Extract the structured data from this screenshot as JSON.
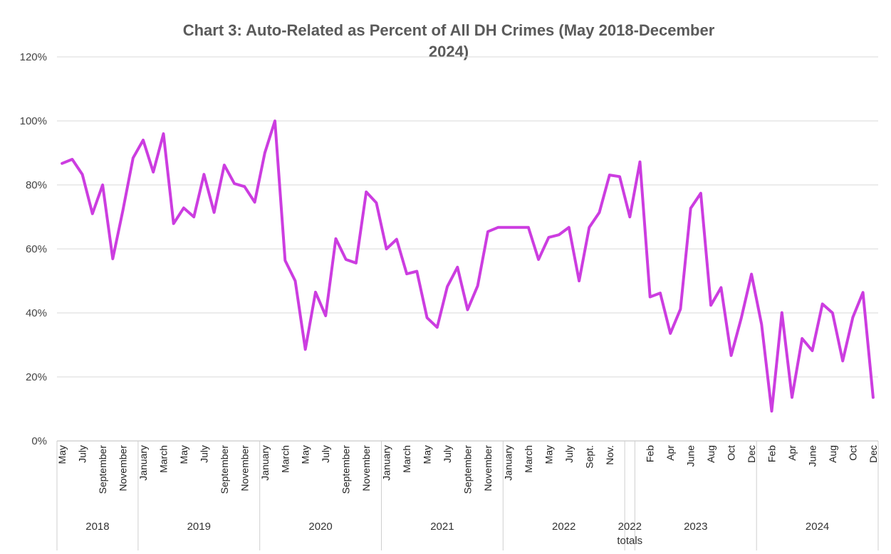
{
  "chart_data": {
    "type": "line",
    "title_lines": [
      "Chart 3: Auto-Related as Percent of All DH Crimes (May 2018-December",
      "2024)"
    ],
    "ylim": [
      0,
      120
    ],
    "y_ticks": [
      "0%",
      "20%",
      "40%",
      "60%",
      "80%",
      "100%",
      "120%"
    ],
    "grid": true,
    "legend": "none",
    "line_color": "#cc3de0",
    "points": [
      {
        "group": "2018",
        "month": "May",
        "value": 86.7
      },
      {
        "group": "2018",
        "month": "June",
        "value": 88
      },
      {
        "group": "2018",
        "month": "July",
        "value": 83.3
      },
      {
        "group": "2018",
        "month": "August",
        "value": 71
      },
      {
        "group": "2018",
        "month": "September",
        "value": 80
      },
      {
        "group": "2018",
        "month": "October",
        "value": 56.9
      },
      {
        "group": "2018",
        "month": "November",
        "value": 72
      },
      {
        "group": "2018",
        "month": "December",
        "value": 88.4
      },
      {
        "group": "2019",
        "month": "January",
        "value": 94
      },
      {
        "group": "2019",
        "month": "February",
        "value": 84
      },
      {
        "group": "2019",
        "month": "March",
        "value": 96
      },
      {
        "group": "2019",
        "month": "April",
        "value": 67.9
      },
      {
        "group": "2019",
        "month": "May",
        "value": 72.8
      },
      {
        "group": "2019",
        "month": "June",
        "value": 70
      },
      {
        "group": "2019",
        "month": "July",
        "value": 83.3
      },
      {
        "group": "2019",
        "month": "August",
        "value": 71.4
      },
      {
        "group": "2019",
        "month": "September",
        "value": 86.2
      },
      {
        "group": "2019",
        "month": "October",
        "value": 80.4
      },
      {
        "group": "2019",
        "month": "November",
        "value": 79.5
      },
      {
        "group": "2019",
        "month": "December",
        "value": 74.6
      },
      {
        "group": "2020",
        "month": "January",
        "value": 90
      },
      {
        "group": "2020",
        "month": "February",
        "value": 100
      },
      {
        "group": "2020",
        "month": "March",
        "value": 56.4
      },
      {
        "group": "2020",
        "month": "April",
        "value": 50
      },
      {
        "group": "2020",
        "month": "May",
        "value": 28.6
      },
      {
        "group": "2020",
        "month": "June",
        "value": 46.5
      },
      {
        "group": "2020",
        "month": "July",
        "value": 39.1
      },
      {
        "group": "2020",
        "month": "August",
        "value": 63.2
      },
      {
        "group": "2020",
        "month": "September",
        "value": 56.7
      },
      {
        "group": "2020",
        "month": "October",
        "value": 55.6
      },
      {
        "group": "2020",
        "month": "November",
        "value": 77.8
      },
      {
        "group": "2020",
        "month": "December",
        "value": 74.4
      },
      {
        "group": "2021",
        "month": "January",
        "value": 60
      },
      {
        "group": "2021",
        "month": "February",
        "value": 63
      },
      {
        "group": "2021",
        "month": "March",
        "value": 52.2
      },
      {
        "group": "2021",
        "month": "April",
        "value": 53
      },
      {
        "group": "2021",
        "month": "May",
        "value": 38.5
      },
      {
        "group": "2021",
        "month": "June",
        "value": 35.5
      },
      {
        "group": "2021",
        "month": "July",
        "value": 48.2
      },
      {
        "group": "2021",
        "month": "August",
        "value": 54.3
      },
      {
        "group": "2021",
        "month": "September",
        "value": 41
      },
      {
        "group": "2021",
        "month": "October",
        "value": 48.5
      },
      {
        "group": "2021",
        "month": "November",
        "value": 65.4
      },
      {
        "group": "2021",
        "month": "December",
        "value": 66.7
      },
      {
        "group": "2022",
        "month": "January",
        "value": 66.7
      },
      {
        "group": "2022",
        "month": "February",
        "value": 66.7
      },
      {
        "group": "2022",
        "month": "March",
        "value": 66.7
      },
      {
        "group": "2022",
        "month": "April",
        "value": 56.7
      },
      {
        "group": "2022",
        "month": "May",
        "value": 63.6
      },
      {
        "group": "2022",
        "month": "June",
        "value": 64.4
      },
      {
        "group": "2022",
        "month": "July",
        "value": 66.7
      },
      {
        "group": "2022",
        "month": "August",
        "value": 50
      },
      {
        "group": "2022",
        "month": "Sept.",
        "value": 66.7
      },
      {
        "group": "2022",
        "month": "October",
        "value": 71.4
      },
      {
        "group": "2022",
        "month": "Nov.",
        "value": 83.1
      },
      {
        "group": "2022",
        "month": "December",
        "value": 82.6
      },
      {
        "group": "2022 totals",
        "month": "",
        "value": 70
      },
      {
        "group": "2023",
        "month": "Jan",
        "value": 87.2
      },
      {
        "group": "2023",
        "month": "Feb",
        "value": 45
      },
      {
        "group": "2023",
        "month": "Mar",
        "value": 46.2
      },
      {
        "group": "2023",
        "month": "Apr",
        "value": 33.6
      },
      {
        "group": "2023",
        "month": "May",
        "value": 41.2
      },
      {
        "group": "2023",
        "month": "June",
        "value": 72.7
      },
      {
        "group": "2023",
        "month": "July",
        "value": 77.4
      },
      {
        "group": "2023",
        "month": "Aug",
        "value": 42.4
      },
      {
        "group": "2023",
        "month": "Sep",
        "value": 47.9
      },
      {
        "group": "2023",
        "month": "Oct",
        "value": 26.7
      },
      {
        "group": "2023",
        "month": "Nov",
        "value": 38.4
      },
      {
        "group": "2023",
        "month": "Dec",
        "value": 52.1
      },
      {
        "group": "2024",
        "month": "Jan",
        "value": 36.4
      },
      {
        "group": "2024",
        "month": "Feb",
        "value": 9.3
      },
      {
        "group": "2024",
        "month": "Mar",
        "value": 40.1
      },
      {
        "group": "2024",
        "month": "Apr",
        "value": 13.6
      },
      {
        "group": "2024",
        "month": "May",
        "value": 32
      },
      {
        "group": "2024",
        "month": "June",
        "value": 28.2
      },
      {
        "group": "2024",
        "month": "July",
        "value": 42.8
      },
      {
        "group": "2024",
        "month": "Aug",
        "value": 40
      },
      {
        "group": "2024",
        "month": "Sep",
        "value": 25
      },
      {
        "group": "2024",
        "month": "Oct",
        "value": 38.6
      },
      {
        "group": "2024",
        "month": "Nov",
        "value": 46.4
      },
      {
        "group": "2024",
        "month": "Dec",
        "value": 13.6
      }
    ],
    "shown_tick_labels": {
      "2018": [
        "May",
        "July",
        "September",
        "November"
      ],
      "2019": [
        "January",
        "March",
        "May",
        "July",
        "September",
        "November"
      ],
      "2020": [
        "January",
        "March",
        "May",
        "July",
        "September",
        "November"
      ],
      "2021": [
        "January",
        "March",
        "May",
        "July",
        "September",
        "November"
      ],
      "2022": [
        "January",
        "March",
        "May",
        "July",
        "Sept.",
        "Nov."
      ],
      "2023": [
        "Feb",
        "Apr",
        "June",
        "Aug",
        "Oct",
        "Dec"
      ],
      "2024": [
        "Feb",
        "Apr",
        "June",
        "Aug",
        "Oct",
        "Dec"
      ]
    },
    "year_labels": [
      {
        "group": "2018",
        "label": "2018"
      },
      {
        "group": "2019",
        "label": "2019"
      },
      {
        "group": "2020",
        "label": "2020"
      },
      {
        "group": "2021",
        "label": "2021"
      },
      {
        "group": "2022",
        "label": "2022"
      },
      {
        "group": "2022 totals",
        "label": "2022",
        "sublabel": "totals"
      },
      {
        "group": "2023",
        "label": "2023"
      },
      {
        "group": "2024",
        "label": "2024"
      }
    ]
  }
}
